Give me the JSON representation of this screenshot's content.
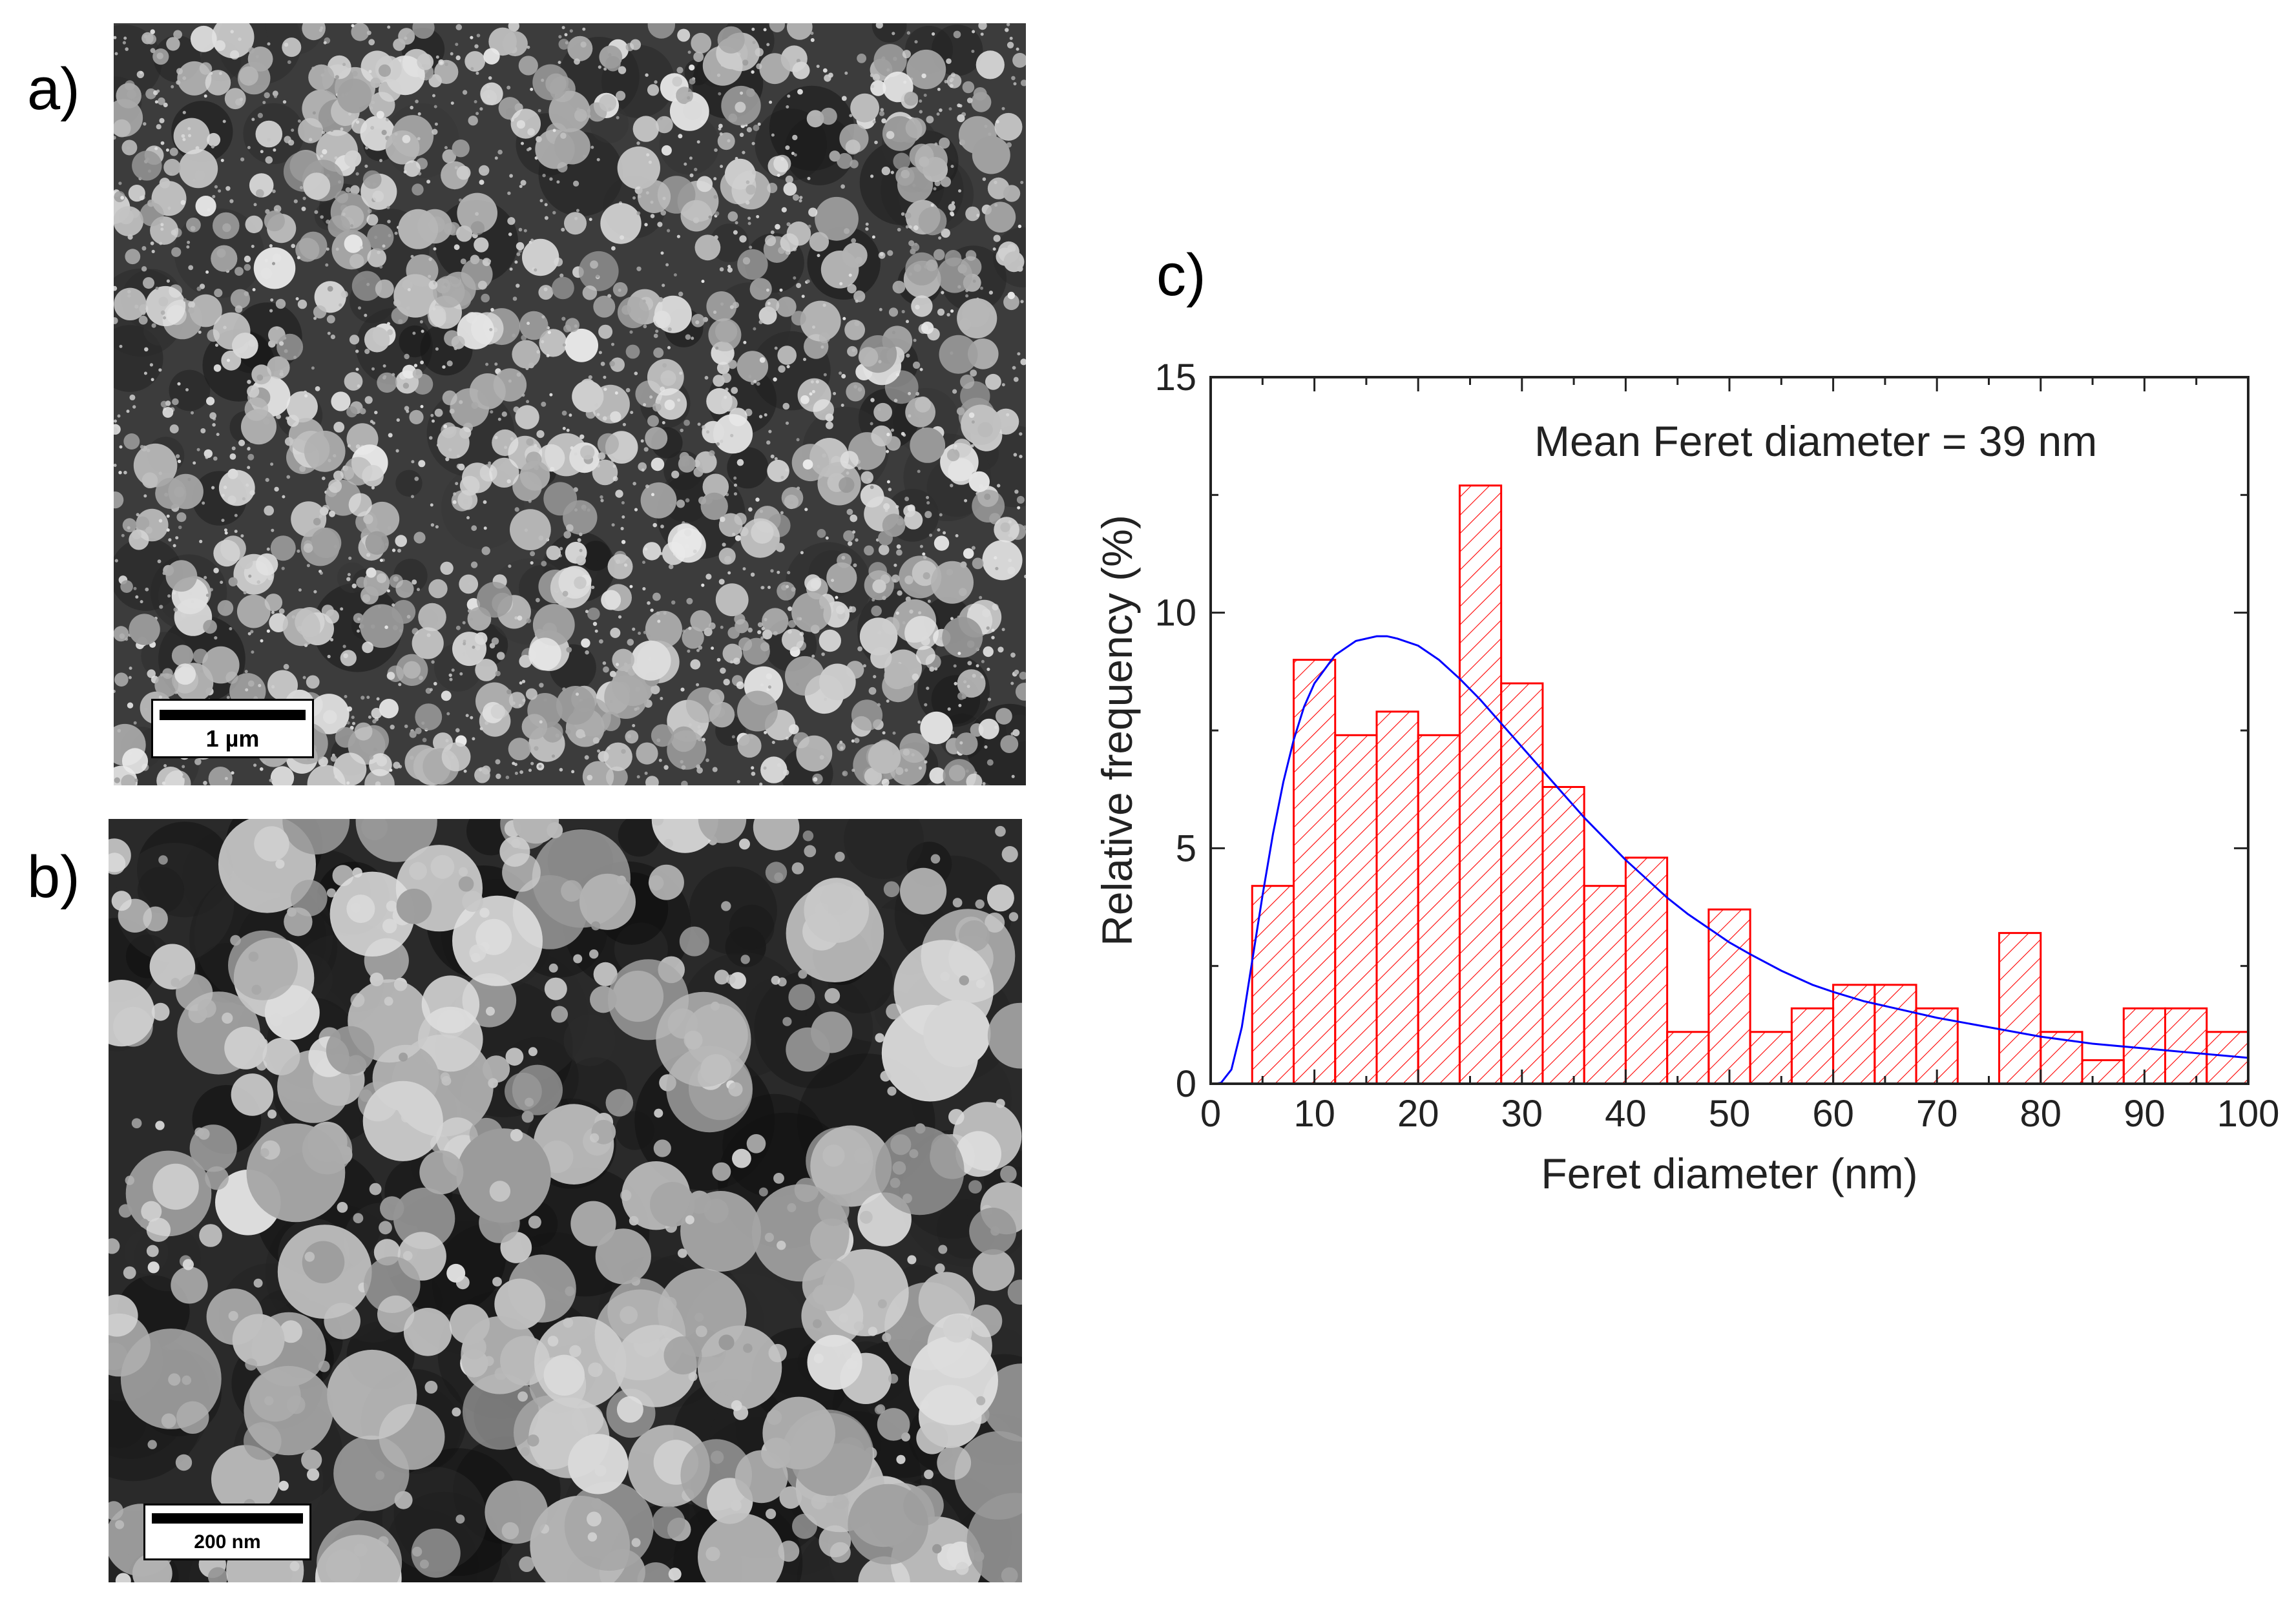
{
  "panels": {
    "a": {
      "label": "a)",
      "scale_label": "1 µm"
    },
    "b": {
      "label": "b)",
      "scale_label": "200 nm"
    },
    "c": {
      "label": "c)"
    }
  },
  "chart_data": {
    "type": "bar",
    "annotation": "Mean Feret diameter = 39 nm",
    "xlabel": "Feret diameter (nm)",
    "ylabel": "Relative frequency (%)",
    "xlim": [
      0,
      100
    ],
    "ylim": [
      0,
      15
    ],
    "xticks": [
      0,
      10,
      20,
      30,
      40,
      50,
      60,
      70,
      80,
      90,
      100
    ],
    "yticks": [
      0,
      5,
      10,
      15
    ],
    "bin_width": 4,
    "bins": [
      {
        "start": 4,
        "value": 4.2
      },
      {
        "start": 8,
        "value": 9.0
      },
      {
        "start": 12,
        "value": 7.4
      },
      {
        "start": 16,
        "value": 7.9
      },
      {
        "start": 20,
        "value": 7.4
      },
      {
        "start": 24,
        "value": 12.7
      },
      {
        "start": 28,
        "value": 8.5
      },
      {
        "start": 32,
        "value": 6.3
      },
      {
        "start": 36,
        "value": 4.2
      },
      {
        "start": 40,
        "value": 4.8
      },
      {
        "start": 44,
        "value": 1.1
      },
      {
        "start": 48,
        "value": 3.7
      },
      {
        "start": 52,
        "value": 1.1
      },
      {
        "start": 56,
        "value": 1.6
      },
      {
        "start": 60,
        "value": 2.1
      },
      {
        "start": 64,
        "value": 2.1
      },
      {
        "start": 68,
        "value": 1.6
      },
      {
        "start": 72,
        "value": 0
      },
      {
        "start": 76,
        "value": 3.2
      },
      {
        "start": 80,
        "value": 1.1
      },
      {
        "start": 84,
        "value": 0.5
      },
      {
        "start": 88,
        "value": 1.6
      },
      {
        "start": 92,
        "value": 1.6
      },
      {
        "start": 96,
        "value": 1.1
      }
    ],
    "fit_curve": {
      "type": "lognormal",
      "points": [
        [
          0.5,
          0
        ],
        [
          1,
          0.02
        ],
        [
          2,
          0.3
        ],
        [
          3,
          1.2
        ],
        [
          4,
          2.6
        ],
        [
          5,
          4.0
        ],
        [
          6,
          5.3
        ],
        [
          7,
          6.4
        ],
        [
          8,
          7.3
        ],
        [
          9,
          8.0
        ],
        [
          10,
          8.5
        ],
        [
          12,
          9.1
        ],
        [
          14,
          9.4
        ],
        [
          16,
          9.5
        ],
        [
          17,
          9.5
        ],
        [
          18,
          9.45
        ],
        [
          20,
          9.3
        ],
        [
          22,
          9.0
        ],
        [
          24,
          8.6
        ],
        [
          26,
          8.15
        ],
        [
          28,
          7.65
        ],
        [
          30,
          7.15
        ],
        [
          32,
          6.65
        ],
        [
          34,
          6.15
        ],
        [
          36,
          5.65
        ],
        [
          38,
          5.2
        ],
        [
          40,
          4.75
        ],
        [
          42,
          4.35
        ],
        [
          44,
          3.95
        ],
        [
          46,
          3.6
        ],
        [
          48,
          3.3
        ],
        [
          50,
          3.0
        ],
        [
          52,
          2.75
        ],
        [
          55,
          2.4
        ],
        [
          58,
          2.1
        ],
        [
          60,
          1.95
        ],
        [
          63,
          1.75
        ],
        [
          66,
          1.6
        ],
        [
          70,
          1.4
        ],
        [
          75,
          1.2
        ],
        [
          80,
          1.0
        ],
        [
          85,
          0.85
        ],
        [
          90,
          0.75
        ],
        [
          95,
          0.65
        ],
        [
          100,
          0.55
        ]
      ]
    },
    "colors": {
      "bars": "#ff0000",
      "curve": "#0000ff",
      "axis": "#222222"
    }
  }
}
